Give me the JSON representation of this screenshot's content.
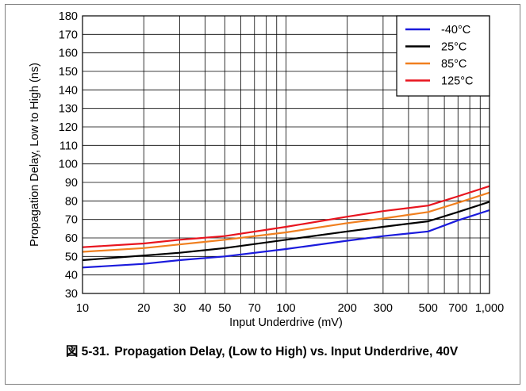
{
  "figure": {
    "label": "図 5-31.",
    "caption": "Propagation Delay, (Low to High) vs. Input Underdrive, 40V"
  },
  "chart_data": {
    "type": "line",
    "title": "",
    "xlabel": "Input Underdrive (mV)",
    "ylabel": "Propagation Delay, Low to High (ns)",
    "xscale": "log",
    "xlim": [
      10,
      1000
    ],
    "ylim": [
      30,
      180
    ],
    "x_ticks": [
      10,
      20,
      30,
      40,
      50,
      70,
      100,
      200,
      300,
      500,
      700,
      1000
    ],
    "x_tick_labels": [
      "10",
      "20",
      "30",
      "40",
      "50",
      "70",
      "100",
      "200",
      "300",
      "500",
      "700",
      "1,000"
    ],
    "x_minor_gridlines": [
      60,
      80,
      90,
      400,
      600,
      800,
      900
    ],
    "y_ticks": [
      30,
      40,
      50,
      60,
      70,
      80,
      90,
      100,
      110,
      120,
      130,
      140,
      150,
      160,
      170,
      180
    ],
    "y_tick_labels": [
      "30",
      "40",
      "50",
      "60",
      "70",
      "80",
      "90",
      "100",
      "110",
      "120",
      "130",
      "140",
      "150",
      "160",
      "170",
      "180"
    ],
    "grid": true,
    "legend_position": "top-right",
    "series": [
      {
        "name": "-40°C",
        "color": "#1a1adc",
        "x": [
          10,
          20,
          30,
          50,
          100,
          200,
          300,
          500,
          700,
          1000
        ],
        "y": [
          44,
          46,
          48,
          50,
          54,
          58.5,
          61,
          63.5,
          69.5,
          75
        ]
      },
      {
        "name": "25°C",
        "color": "#000000",
        "x": [
          10,
          20,
          30,
          50,
          100,
          200,
          300,
          500,
          700,
          1000
        ],
        "y": [
          48,
          50.5,
          52,
          54.5,
          59,
          63.5,
          66,
          69,
          74,
          79.5
        ]
      },
      {
        "name": "85°C",
        "color": "#f07f1f",
        "x": [
          10,
          20,
          30,
          50,
          100,
          200,
          300,
          500,
          700,
          1000
        ],
        "y": [
          52.5,
          54.5,
          56.5,
          59,
          63,
          68,
          70.5,
          74,
          79,
          84.5
        ]
      },
      {
        "name": "125°C",
        "color": "#e8141e",
        "x": [
          10,
          20,
          30,
          50,
          100,
          200,
          300,
          500,
          700,
          1000
        ],
        "y": [
          55,
          57,
          59,
          61,
          66,
          71.5,
          74.5,
          77.5,
          82.5,
          88
        ]
      }
    ]
  }
}
